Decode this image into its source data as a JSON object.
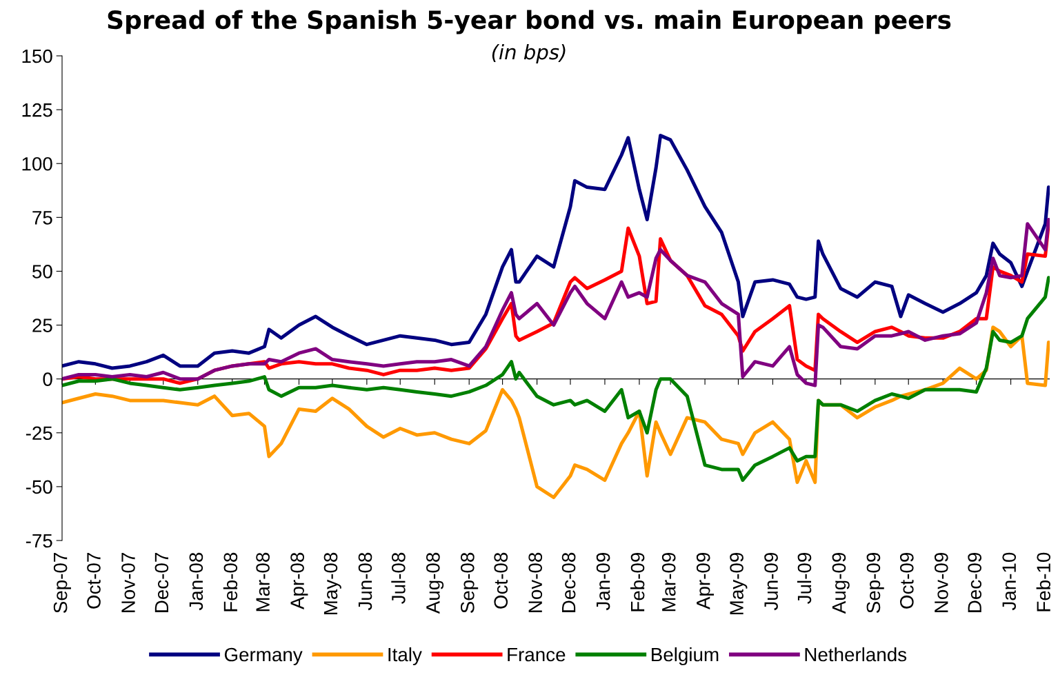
{
  "chart_data": {
    "type": "line",
    "title": "Spread of the Spanish 5-year bond vs. main European peers",
    "subtitle": "(in bps)",
    "x": [
      "2007-09-01",
      "2007-09-16",
      "2007-10-01",
      "2007-10-16",
      "2007-11-01",
      "2007-11-16",
      "2007-12-01",
      "2007-12-16",
      "2008-01-01",
      "2008-01-16",
      "2008-02-01",
      "2008-02-16",
      "2008-03-01",
      "2008-03-05",
      "2008-03-16",
      "2008-04-01",
      "2008-04-16",
      "2008-05-01",
      "2008-05-16",
      "2008-06-01",
      "2008-06-16",
      "2008-07-01",
      "2008-07-16",
      "2008-08-01",
      "2008-08-16",
      "2008-09-01",
      "2008-09-16",
      "2008-10-01",
      "2008-10-09",
      "2008-10-13",
      "2008-10-16",
      "2008-11-01",
      "2008-11-16",
      "2008-12-01",
      "2008-12-05",
      "2008-12-16",
      "2009-01-01",
      "2009-01-16",
      "2009-01-22",
      "2009-02-01",
      "2009-02-08",
      "2009-02-16",
      "2009-02-20",
      "2009-03-01",
      "2009-03-16",
      "2009-04-01",
      "2009-04-16",
      "2009-05-01",
      "2009-05-05",
      "2009-05-16",
      "2009-06-01",
      "2009-06-16",
      "2009-06-23",
      "2009-07-01",
      "2009-07-09",
      "2009-07-12",
      "2009-07-16",
      "2009-08-01",
      "2009-08-16",
      "2009-09-01",
      "2009-09-16",
      "2009-09-24",
      "2009-10-01",
      "2009-10-16",
      "2009-11-01",
      "2009-11-16",
      "2009-12-01",
      "2009-12-10",
      "2009-12-16",
      "2009-12-22",
      "2010-01-01",
      "2010-01-11",
      "2010-01-16",
      "2010-02-01",
      "2010-02-04"
    ],
    "series": [
      {
        "name": "Germany",
        "color": "#000080",
        "values": [
          6,
          8,
          7,
          5,
          6,
          8,
          11,
          6,
          6,
          12,
          13,
          12,
          15,
          23,
          19,
          25,
          29,
          24,
          20,
          16,
          18,
          20,
          19,
          18,
          16,
          17,
          30,
          52,
          60,
          45,
          45,
          57,
          52,
          80,
          92,
          89,
          88,
          104,
          112,
          88,
          74,
          98,
          113,
          111,
          97,
          80,
          68,
          45,
          29,
          45,
          46,
          44,
          38,
          37,
          38,
          64,
          58,
          42,
          38,
          45,
          43,
          29,
          39,
          35,
          31,
          35,
          40,
          48,
          63,
          58,
          54,
          43,
          50,
          72,
          89
        ]
      },
      {
        "name": "Italy",
        "color": "#ff9900",
        "values": [
          -11,
          -9,
          -7,
          -8,
          -10,
          -10,
          -10,
          -11,
          -12,
          -8,
          -17,
          -16,
          -22,
          -36,
          -30,
          -14,
          -15,
          -9,
          -14,
          -22,
          -27,
          -23,
          -26,
          -25,
          -28,
          -30,
          -24,
          -5,
          -10,
          -14,
          -18,
          -50,
          -55,
          -45,
          -40,
          -42,
          -47,
          -30,
          -25,
          -15,
          -45,
          -20,
          -25,
          -35,
          -18,
          -20,
          -28,
          -30,
          -35,
          -25,
          -20,
          -28,
          -48,
          -38,
          -48,
          -10,
          -12,
          -12,
          -18,
          -13,
          -10,
          -8,
          -7,
          -5,
          -2,
          5,
          0,
          4,
          24,
          22,
          15,
          20,
          -2,
          -3,
          17
        ]
      },
      {
        "name": "France",
        "color": "#ff0000",
        "values": [
          0,
          1,
          0,
          0,
          0,
          0,
          0,
          -2,
          0,
          4,
          6,
          7,
          8,
          5,
          7,
          8,
          7,
          7,
          5,
          4,
          2,
          4,
          4,
          5,
          4,
          5,
          14,
          28,
          35,
          20,
          18,
          22,
          26,
          45,
          47,
          42,
          46,
          50,
          70,
          57,
          35,
          36,
          65,
          55,
          48,
          34,
          30,
          20,
          13,
          22,
          28,
          34,
          9,
          6,
          4,
          30,
          28,
          22,
          17,
          22,
          24,
          22,
          20,
          19,
          19,
          22,
          28,
          28,
          52,
          50,
          48,
          45,
          58,
          57,
          72
        ]
      },
      {
        "name": "Belgium",
        "color": "#008000",
        "values": [
          -3,
          -1,
          -1,
          0,
          -2,
          -3,
          -4,
          -5,
          -4,
          -3,
          -2,
          -1,
          1,
          -5,
          -8,
          -4,
          -4,
          -3,
          -4,
          -5,
          -4,
          -5,
          -6,
          -7,
          -8,
          -6,
          -3,
          2,
          8,
          0,
          3,
          -8,
          -12,
          -10,
          -12,
          -10,
          -15,
          -5,
          -18,
          -15,
          -25,
          -5,
          0,
          0,
          -8,
          -40,
          -42,
          -42,
          -47,
          -40,
          -36,
          -32,
          -38,
          -36,
          -36,
          -10,
          -12,
          -12,
          -15,
          -10,
          -7,
          -8,
          -9,
          -5,
          -5,
          -5,
          -6,
          5,
          22,
          18,
          17,
          20,
          28,
          38,
          47
        ]
      },
      {
        "name": "Netherlands",
        "color": "#800080",
        "values": [
          0,
          2,
          2,
          1,
          2,
          1,
          3,
          0,
          0,
          4,
          6,
          7,
          7,
          9,
          8,
          12,
          14,
          9,
          8,
          7,
          6,
          7,
          8,
          8,
          9,
          6,
          15,
          32,
          40,
          30,
          28,
          35,
          25,
          40,
          43,
          35,
          28,
          45,
          38,
          40,
          38,
          56,
          60,
          55,
          48,
          45,
          35,
          30,
          1,
          8,
          6,
          15,
          2,
          -2,
          -3,
          25,
          24,
          15,
          14,
          20,
          20,
          21,
          22,
          18,
          20,
          21,
          26,
          40,
          56,
          48,
          47,
          48,
          72,
          60,
          74
        ]
      }
    ],
    "xlim": [
      "2007-09-01",
      "2010-02-05"
    ],
    "xticks": [
      {
        "value": "2007-09-01",
        "label": "Sep-07"
      },
      {
        "value": "2007-10-01",
        "label": "Oct-07"
      },
      {
        "value": "2007-11-01",
        "label": "Nov-07"
      },
      {
        "value": "2007-12-01",
        "label": "Dec-07"
      },
      {
        "value": "2008-01-01",
        "label": "Jan-08"
      },
      {
        "value": "2008-02-01",
        "label": "Feb-08"
      },
      {
        "value": "2008-03-01",
        "label": "Mar-08"
      },
      {
        "value": "2008-04-01",
        "label": "Apr-08"
      },
      {
        "value": "2008-05-01",
        "label": "May-08"
      },
      {
        "value": "2008-06-01",
        "label": "Jun-08"
      },
      {
        "value": "2008-07-01",
        "label": "Jul-08"
      },
      {
        "value": "2008-08-01",
        "label": "Aug-08"
      },
      {
        "value": "2008-09-01",
        "label": "Sep-08"
      },
      {
        "value": "2008-10-01",
        "label": "Oct-08"
      },
      {
        "value": "2008-11-01",
        "label": "Nov-08"
      },
      {
        "value": "2008-12-01",
        "label": "Dec-08"
      },
      {
        "value": "2009-01-01",
        "label": "Jan-09"
      },
      {
        "value": "2009-02-01",
        "label": "Feb-09"
      },
      {
        "value": "2009-03-01",
        "label": "Mar-09"
      },
      {
        "value": "2009-04-01",
        "label": "Apr-09"
      },
      {
        "value": "2009-05-01",
        "label": "May-09"
      },
      {
        "value": "2009-06-01",
        "label": "Jun-09"
      },
      {
        "value": "2009-07-01",
        "label": "Jul-09"
      },
      {
        "value": "2009-08-01",
        "label": "Aug-09"
      },
      {
        "value": "2009-09-01",
        "label": "Sep-09"
      },
      {
        "value": "2009-10-01",
        "label": "Oct-09"
      },
      {
        "value": "2009-11-01",
        "label": "Nov-09"
      },
      {
        "value": "2009-12-01",
        "label": "Dec-09"
      },
      {
        "value": "2010-01-01",
        "label": "Jan-10"
      },
      {
        "value": "2010-02-01",
        "label": "Feb-10"
      }
    ],
    "ylim": [
      -75,
      150
    ],
    "yticks": [
      -75,
      -50,
      -25,
      0,
      25,
      50,
      75,
      100,
      125,
      150
    ],
    "ref_lines": [
      {
        "axis": "y",
        "value": 0,
        "color": "#000000",
        "line_style": "solid"
      }
    ],
    "legend": "bottom",
    "grid": false,
    "marker": "none",
    "line_style": "solid"
  }
}
